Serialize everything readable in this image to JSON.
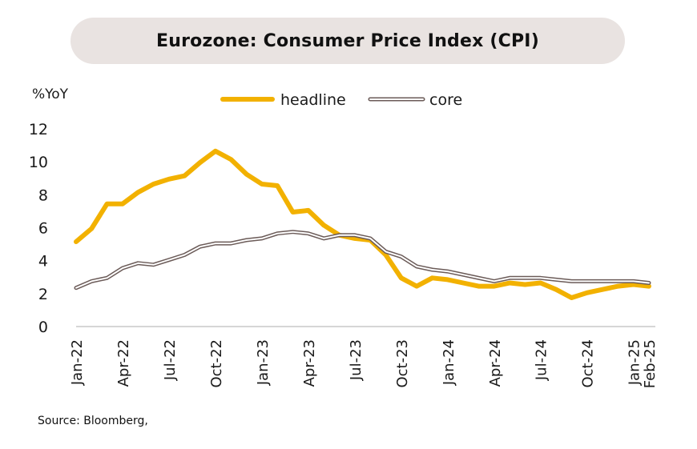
{
  "chart_data": {
    "type": "line",
    "title": "Eurozone: Consumer Price Index (CPI)",
    "ylabel": "%YoY",
    "xlabel": "",
    "ylim": [
      0,
      12
    ],
    "yticks": [
      0,
      2,
      4,
      6,
      8,
      10,
      12
    ],
    "grid": false,
    "legend_position": "top-center",
    "x": [
      "Jan-22",
      "Feb-22",
      "Mar-22",
      "Apr-22",
      "May-22",
      "Jun-22",
      "Jul-22",
      "Aug-22",
      "Sep-22",
      "Oct-22",
      "Nov-22",
      "Dec-22",
      "Jan-23",
      "Feb-23",
      "Mar-23",
      "Apr-23",
      "May-23",
      "Jun-23",
      "Jul-23",
      "Aug-23",
      "Sep-23",
      "Oct-23",
      "Nov-23",
      "Dec-23",
      "Jan-24",
      "Feb-24",
      "Mar-24",
      "Apr-24",
      "May-24",
      "Jun-24",
      "Jul-24",
      "Aug-24",
      "Sep-24",
      "Oct-24",
      "Nov-24",
      "Dec-24",
      "Jan-25",
      "Feb-25"
    ],
    "xtick_labels": [
      "Jan-22",
      "Apr-22",
      "Jul-22",
      "Oct-22",
      "Jan-23",
      "Apr-23",
      "Jul-23",
      "Oct-23",
      "Jan-24",
      "Apr-24",
      "Jul-24",
      "Oct-24",
      "Jan-25",
      "Feb-25"
    ],
    "series": [
      {
        "name": "headline",
        "color": "#f2b100",
        "values": [
          5.1,
          5.9,
          7.4,
          7.4,
          8.1,
          8.6,
          8.9,
          9.1,
          9.9,
          10.6,
          10.1,
          9.2,
          8.6,
          8.5,
          6.9,
          7.0,
          6.1,
          5.5,
          5.3,
          5.2,
          4.3,
          2.9,
          2.4,
          2.9,
          2.8,
          2.6,
          2.4,
          2.4,
          2.6,
          2.5,
          2.6,
          2.2,
          1.7,
          2.0,
          2.2,
          2.4,
          2.5,
          2.4
        ]
      },
      {
        "name": "core",
        "color": "#6b5b58",
        "values": [
          2.3,
          2.7,
          2.9,
          3.5,
          3.8,
          3.7,
          4.0,
          4.3,
          4.8,
          5.0,
          5.0,
          5.2,
          5.3,
          5.6,
          5.7,
          5.6,
          5.3,
          5.5,
          5.5,
          5.3,
          4.5,
          4.2,
          3.6,
          3.4,
          3.3,
          3.1,
          2.9,
          2.7,
          2.9,
          2.9,
          2.9,
          2.8,
          2.7,
          2.7,
          2.7,
          2.7,
          2.7,
          2.6
        ]
      }
    ]
  },
  "source": "Source: Bloomberg,"
}
